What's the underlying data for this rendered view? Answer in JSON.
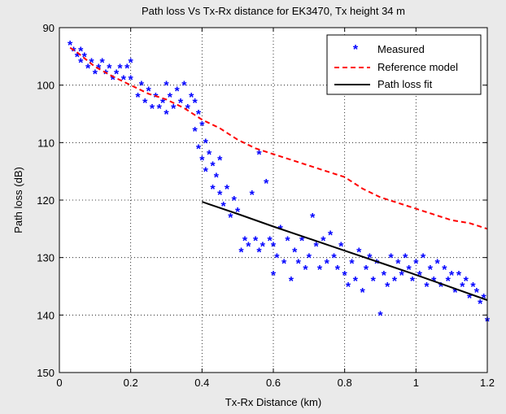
{
  "chart_data": {
    "type": "scatter",
    "title": "Path loss Vs Tx-Rx distance for EK3470, Tx height 34 m",
    "xlabel": "Tx-Rx Distance (km)",
    "ylabel": "Path loss (dB)",
    "xlim": [
      0,
      1.2
    ],
    "ylim": [
      90,
      150
    ],
    "y_reversed": true,
    "grid": true,
    "legend_position": "top-right",
    "x_ticks": [
      0,
      0.2,
      0.4,
      0.6,
      0.8,
      1,
      1.2
    ],
    "x_tick_labels": [
      "0",
      "0.2",
      "0.4",
      "0.6",
      "0.8",
      "1",
      "1.2"
    ],
    "y_ticks": [
      90,
      100,
      110,
      120,
      130,
      140,
      150
    ],
    "y_tick_labels": [
      "90",
      "100",
      "110",
      "120",
      "130",
      "140",
      "150"
    ],
    "series": [
      {
        "name": "Measured",
        "style": "marker",
        "marker": "*",
        "color": "#0000ff",
        "points": [
          [
            0.03,
            93
          ],
          [
            0.04,
            94
          ],
          [
            0.05,
            95
          ],
          [
            0.06,
            94
          ],
          [
            0.06,
            96
          ],
          [
            0.07,
            95
          ],
          [
            0.08,
            97
          ],
          [
            0.09,
            96
          ],
          [
            0.1,
            98
          ],
          [
            0.11,
            97
          ],
          [
            0.12,
            96
          ],
          [
            0.13,
            98
          ],
          [
            0.14,
            97
          ],
          [
            0.15,
            99
          ],
          [
            0.16,
            98
          ],
          [
            0.17,
            97
          ],
          [
            0.18,
            99
          ],
          [
            0.19,
            97
          ],
          [
            0.2,
            99
          ],
          [
            0.2,
            96
          ],
          [
            0.22,
            102
          ],
          [
            0.23,
            100
          ],
          [
            0.24,
            103
          ],
          [
            0.25,
            101
          ],
          [
            0.26,
            104
          ],
          [
            0.27,
            102
          ],
          [
            0.28,
            104
          ],
          [
            0.29,
            103
          ],
          [
            0.3,
            105
          ],
          [
            0.3,
            100
          ],
          [
            0.31,
            102
          ],
          [
            0.32,
            104
          ],
          [
            0.33,
            101
          ],
          [
            0.34,
            103
          ],
          [
            0.35,
            100
          ],
          [
            0.36,
            104
          ],
          [
            0.37,
            102
          ],
          [
            0.38,
            103
          ],
          [
            0.38,
            108
          ],
          [
            0.39,
            105
          ],
          [
            0.39,
            111
          ],
          [
            0.4,
            107
          ],
          [
            0.4,
            113
          ],
          [
            0.41,
            110
          ],
          [
            0.41,
            115
          ],
          [
            0.42,
            112
          ],
          [
            0.43,
            114
          ],
          [
            0.43,
            118
          ],
          [
            0.44,
            116
          ],
          [
            0.45,
            119
          ],
          [
            0.45,
            113
          ],
          [
            0.46,
            121
          ],
          [
            0.47,
            118
          ],
          [
            0.48,
            123
          ],
          [
            0.49,
            120
          ],
          [
            0.5,
            122
          ],
          [
            0.51,
            129
          ],
          [
            0.52,
            127
          ],
          [
            0.53,
            128
          ],
          [
            0.54,
            119
          ],
          [
            0.55,
            127
          ],
          [
            0.56,
            112
          ],
          [
            0.56,
            129
          ],
          [
            0.57,
            128
          ],
          [
            0.58,
            117
          ],
          [
            0.59,
            127
          ],
          [
            0.6,
            133
          ],
          [
            0.6,
            128
          ],
          [
            0.61,
            130
          ],
          [
            0.62,
            125
          ],
          [
            0.63,
            131
          ],
          [
            0.64,
            127
          ],
          [
            0.65,
            134
          ],
          [
            0.66,
            129
          ],
          [
            0.67,
            131
          ],
          [
            0.68,
            127
          ],
          [
            0.69,
            132
          ],
          [
            0.7,
            130
          ],
          [
            0.71,
            123
          ],
          [
            0.72,
            128
          ],
          [
            0.73,
            132
          ],
          [
            0.74,
            127
          ],
          [
            0.75,
            131
          ],
          [
            0.76,
            126
          ],
          [
            0.77,
            130
          ],
          [
            0.78,
            132
          ],
          [
            0.79,
            128
          ],
          [
            0.8,
            133
          ],
          [
            0.81,
            135
          ],
          [
            0.82,
            131
          ],
          [
            0.83,
            134
          ],
          [
            0.84,
            129
          ],
          [
            0.85,
            136
          ],
          [
            0.86,
            132
          ],
          [
            0.87,
            130
          ],
          [
            0.88,
            134
          ],
          [
            0.89,
            131
          ],
          [
            0.9,
            140
          ],
          [
            0.91,
            133
          ],
          [
            0.92,
            135
          ],
          [
            0.93,
            130
          ],
          [
            0.94,
            134
          ],
          [
            0.95,
            131
          ],
          [
            0.96,
            133
          ],
          [
            0.97,
            130
          ],
          [
            0.98,
            132
          ],
          [
            0.99,
            134
          ],
          [
            1.0,
            131
          ],
          [
            1.01,
            133
          ],
          [
            1.02,
            130
          ],
          [
            1.03,
            135
          ],
          [
            1.04,
            132
          ],
          [
            1.05,
            134
          ],
          [
            1.06,
            131
          ],
          [
            1.07,
            135
          ],
          [
            1.08,
            132
          ],
          [
            1.09,
            134
          ],
          [
            1.1,
            133
          ],
          [
            1.11,
            136
          ],
          [
            1.12,
            133
          ],
          [
            1.13,
            135
          ],
          [
            1.14,
            134
          ],
          [
            1.15,
            137
          ],
          [
            1.16,
            135
          ],
          [
            1.17,
            136
          ],
          [
            1.18,
            138
          ],
          [
            1.19,
            137
          ],
          [
            1.2,
            141
          ]
        ]
      },
      {
        "name": "Reference model",
        "style": "dashed",
        "color": "#ff0000",
        "points": [
          [
            0.03,
            93.5
          ],
          [
            0.05,
            94.3
          ],
          [
            0.1,
            96.8
          ],
          [
            0.15,
            98.5
          ],
          [
            0.2,
            100
          ],
          [
            0.25,
            101.5
          ],
          [
            0.3,
            102.5
          ],
          [
            0.35,
            104
          ],
          [
            0.4,
            106
          ],
          [
            0.45,
            107.5
          ],
          [
            0.5,
            109.5
          ],
          [
            0.55,
            111
          ],
          [
            0.6,
            112
          ],
          [
            0.65,
            113
          ],
          [
            0.7,
            114
          ],
          [
            0.75,
            115
          ],
          [
            0.8,
            116
          ],
          [
            0.85,
            118
          ],
          [
            0.9,
            119.5
          ],
          [
            0.95,
            120.5
          ],
          [
            1.0,
            121.5
          ],
          [
            1.05,
            122.5
          ],
          [
            1.1,
            123.5
          ],
          [
            1.15,
            124
          ],
          [
            1.2,
            125
          ]
        ]
      },
      {
        "name": "Path loss fit",
        "style": "solid",
        "color": "#000000",
        "points": [
          [
            0.4,
            120.3
          ],
          [
            0.5,
            122.4
          ],
          [
            0.6,
            124.6
          ],
          [
            0.7,
            126.7
          ],
          [
            0.8,
            128.8
          ],
          [
            0.9,
            130.9
          ],
          [
            1.0,
            133.0
          ],
          [
            1.1,
            135.2
          ],
          [
            1.2,
            137.4
          ]
        ]
      }
    ]
  }
}
